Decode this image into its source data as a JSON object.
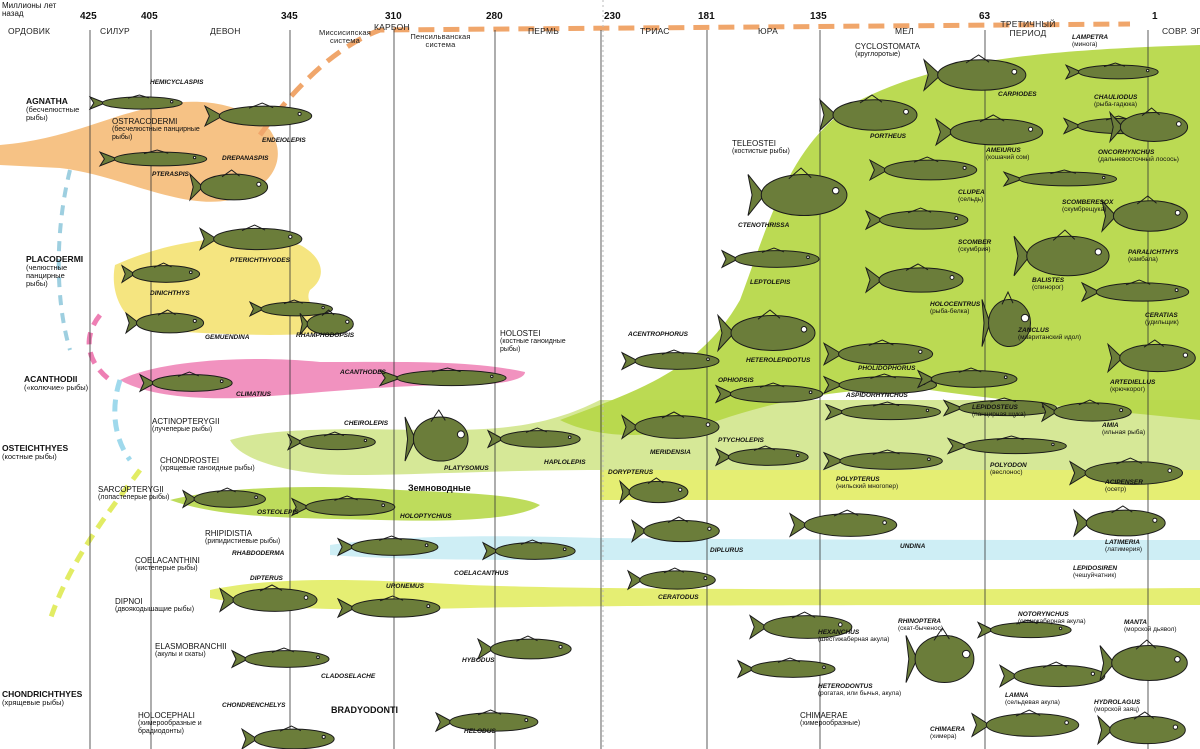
{
  "header": {
    "axis_caption": "Миллионы лет назад",
    "era_left": "ОРДОВИК",
    "era_right": "СОВР. ЭПОХА"
  },
  "ticks": [
    "425",
    "405",
    "345",
    "310",
    "280",
    "230",
    "181",
    "135",
    "63",
    "1"
  ],
  "periods": [
    {
      "id": "silur",
      "label": "СИЛУР"
    },
    {
      "id": "devon",
      "label": "ДЕВОН"
    },
    {
      "id": "missisip",
      "label": "Миссисипская система"
    },
    {
      "id": "karbon",
      "label": "КАРБОН"
    },
    {
      "id": "pensilvan",
      "label": "Пенсильванская система"
    },
    {
      "id": "perm",
      "label": "ПЕРМЬ"
    },
    {
      "id": "trias",
      "label": "ТРИАС"
    },
    {
      "id": "jura",
      "label": "ЮРА"
    },
    {
      "id": "mel",
      "label": "МЕЛ"
    },
    {
      "id": "tretich",
      "label": "ТРЕТИЧНЫЙ ПЕРИОД"
    }
  ],
  "groups": [
    {
      "name": "AGNATHA",
      "ru": "(бесчелюстные рыбы)"
    },
    {
      "name": "PLACODERMI",
      "ru": "(челюстные панцирные рыбы)"
    },
    {
      "name": "ACANTHODII",
      "ru": "(«колючие» рыбы)"
    },
    {
      "name": "OSTEICHTHYES",
      "ru": "(костные рыбы)"
    },
    {
      "name": "CHONDRICHTHYES",
      "ru": "(хрящевые рыбы)"
    }
  ],
  "subgroups": [
    {
      "name": "OSTRACODERMI",
      "ru": "(бесчелюстные панцирные рыбы)"
    },
    {
      "name": "ACTINOPTERYGII",
      "ru": "(лучеперые рыбы)"
    },
    {
      "name": "CHONDROSTEI",
      "ru": "(хрящевые ганоидные рыбы)"
    },
    {
      "name": "SARCOPTERYGII",
      "ru": "(лопастеперые рыбы)"
    },
    {
      "name": "RHIPIDISTIA",
      "ru": "(рипидистиевые рыбы)"
    },
    {
      "name": "COELACANTHINI",
      "ru": "(кистеперые рыбы)"
    },
    {
      "name": "DIPNOI",
      "ru": "(двоякодышащие рыбы)"
    },
    {
      "name": "ELASMOBRANCHII",
      "ru": "(акулы и скаты)"
    },
    {
      "name": "HOLOCEPHALI",
      "ru": "(химерообразные и брадиодонты)"
    },
    {
      "name": "HOLOSTEI",
      "ru": "(костные ганоидные рыбы)"
    },
    {
      "name": "TELEOSTEI",
      "ru": "(костистые рыбы)"
    },
    {
      "name": "CYCLOSTOMATA",
      "ru": "(круглоротые)"
    },
    {
      "name": "CHIMAERAE",
      "ru": "(химерообразные)"
    }
  ],
  "special": {
    "amphibians": "Земноводные",
    "bradyodonti": "BRADYODONTI"
  },
  "species": [
    {
      "name": "HEMICYCLASPIS",
      "ru": ""
    },
    {
      "name": "ENDEIOLEPIS",
      "ru": ""
    },
    {
      "name": "DREPANASPIS",
      "ru": ""
    },
    {
      "name": "PTERASPIS",
      "ru": ""
    },
    {
      "name": "PTERICHTHYODES",
      "ru": ""
    },
    {
      "name": "DINICHTHYS",
      "ru": ""
    },
    {
      "name": "GEMUENDINA",
      "ru": ""
    },
    {
      "name": "RHAMPHODOPSIS",
      "ru": ""
    },
    {
      "name": "CLIMATIUS",
      "ru": ""
    },
    {
      "name": "ACANTHODES",
      "ru": ""
    },
    {
      "name": "CHEIROLEPIS",
      "ru": ""
    },
    {
      "name": "PLATYSOMUS",
      "ru": ""
    },
    {
      "name": "HAPLOLEPIS",
      "ru": ""
    },
    {
      "name": "OSTEOLEPIS",
      "ru": ""
    },
    {
      "name": "HOLOPTYCHIUS",
      "ru": ""
    },
    {
      "name": "RHABDODERMA",
      "ru": ""
    },
    {
      "name": "COELACANTHUS",
      "ru": ""
    },
    {
      "name": "DIPTERUS",
      "ru": ""
    },
    {
      "name": "URONEMUS",
      "ru": ""
    },
    {
      "name": "CLADOSELACHE",
      "ru": ""
    },
    {
      "name": "HYBODUS",
      "ru": ""
    },
    {
      "name": "CHONDRENCHELYS",
      "ru": ""
    },
    {
      "name": "HELODUS",
      "ru": ""
    },
    {
      "name": "ACENTROPHORUS",
      "ru": ""
    },
    {
      "name": "HETEROLEPIDOTUS",
      "ru": ""
    },
    {
      "name": "OPHIOPSIS",
      "ru": ""
    },
    {
      "name": "PTYCHOLEPIS",
      "ru": ""
    },
    {
      "name": "MERIDENSIA",
      "ru": ""
    },
    {
      "name": "DORYPTERUS",
      "ru": ""
    },
    {
      "name": "DIPLURUS",
      "ru": ""
    },
    {
      "name": "CERATODUS",
      "ru": ""
    },
    {
      "name": "PORTHEUS",
      "ru": ""
    },
    {
      "name": "CTENOTHRISSA",
      "ru": ""
    },
    {
      "name": "LEPTOLEPIS",
      "ru": ""
    },
    {
      "name": "PHOLIDOPHORUS",
      "ru": ""
    },
    {
      "name": "ASPIDORHYNCHUS",
      "ru": ""
    },
    {
      "name": "POLYPTERUS",
      "ru": "(нильский многопер)"
    },
    {
      "name": "UNDINA",
      "ru": ""
    },
    {
      "name": "HEXANCHUS",
      "ru": "(шестижаберная акула)"
    },
    {
      "name": "HETERODONTUS",
      "ru": "(рогатая, или бычья, акула)"
    },
    {
      "name": "RHINOPTERA",
      "ru": "(скат-быченос)"
    },
    {
      "name": "CARPIODES",
      "ru": ""
    },
    {
      "name": "AMEIURUS",
      "ru": "(кошачий сом)"
    },
    {
      "name": "CLUPEA",
      "ru": "(сельдь)"
    },
    {
      "name": "SCOMBER",
      "ru": "(скумбрия)"
    },
    {
      "name": "HOLOCENTRUS",
      "ru": "(рыба-белка)"
    },
    {
      "name": "ZANCLUS",
      "ru": "(мавританский идол)"
    },
    {
      "name": "LEPIDOSTEUS",
      "ru": "(панцирная щука)"
    },
    {
      "name": "POLYODON",
      "ru": "(веслонос)"
    },
    {
      "name": "NOTORYNCHUS",
      "ru": "(семижаберная акула)"
    },
    {
      "name": "LAMNA",
      "ru": "(сельдевая акула)"
    },
    {
      "name": "CHIMAERA",
      "ru": "(химера)"
    },
    {
      "name": "LAMPETRA",
      "ru": "(минога)"
    },
    {
      "name": "CHAULIODUS",
      "ru": "(рыба-гадюка)"
    },
    {
      "name": "ONCORHYNCHUS",
      "ru": "(дальневосточный лосось)"
    },
    {
      "name": "SCOMBERESOX",
      "ru": "(скумбрещука)"
    },
    {
      "name": "BALISTES",
      "ru": "(спинорог)"
    },
    {
      "name": "PARALICHTHYS",
      "ru": "(камбала)"
    },
    {
      "name": "CERATIAS",
      "ru": "(удильщик)"
    },
    {
      "name": "ARTEDIELLUS",
      "ru": "(крючкорог)"
    },
    {
      "name": "AMIA",
      "ru": "(ильная рыба)"
    },
    {
      "name": "ACIPENSER",
      "ru": "(осетр)"
    },
    {
      "name": "LATIMERIA",
      "ru": "(латимерия)"
    },
    {
      "name": "LEPIDOSIREN",
      "ru": "(чешуйчатник)"
    },
    {
      "name": "MANTA",
      "ru": "(морской дьявол)"
    },
    {
      "name": "HYDROLAGUS",
      "ru": "(морской заяц)"
    }
  ],
  "colors": {
    "agnatha": "#f4b770",
    "placodermi": "#f3e16a",
    "acanthodii": "#ee7fb4",
    "actinopterygii": "#d2e58c",
    "teleostei": "#b7d84a",
    "lungfish": "#e2ec64",
    "coelacanth": "#c9ecf4",
    "cyclostomata_bar": "#f0a66b",
    "fish_fill": "#6b7d3a",
    "fish_outline": "#1b1b1b",
    "gridline": "#333333"
  }
}
